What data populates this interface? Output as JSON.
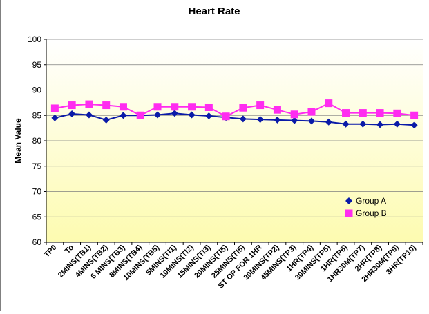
{
  "colors": {
    "plot_bg_top": "#ffffff",
    "plot_bg_bottom": "#fdfbb0",
    "series_a": "#0a1aa8",
    "series_b": "#ff2cf0",
    "axis": "#000000",
    "grid": "#7f7f7f"
  },
  "chart_data": {
    "type": "line",
    "title": "Heart Rate",
    "xlabel": "",
    "ylabel": "Mean Value",
    "ylim": [
      60,
      100
    ],
    "ytick_step": 5,
    "yticks": [
      "60",
      "65",
      "70",
      "75",
      "80",
      "85",
      "90",
      "95",
      "100"
    ],
    "grid": "horizontal",
    "legend_position": "bottom-right",
    "categories": [
      "TP0",
      "To",
      "2MINS(TB1)",
      "4MINS(TB2)",
      "6 MINS(TB3)",
      "8MINS(TB4)",
      "10MINS(TB5)",
      "5MINS(TI1)",
      "10MINS(TI2)",
      "15MINS(TI3)",
      "20MINS(TI5)",
      "25MINS(TI5)",
      "ST OP FOR 1HR",
      "30MINS(TP2)",
      "45MINS(TP3)",
      "1HR(TP4)",
      "30MINS(TP5)",
      "1HR(TP6)",
      "1HR30M(TP7)",
      "2HR(TP8)",
      "2HR30M(TP9)",
      "3HR(TP10)"
    ],
    "series": [
      {
        "name": "Group A",
        "marker": "diamond",
        "values": [
          84.5,
          85.3,
          85.1,
          84.1,
          85.0,
          85.0,
          85.1,
          85.4,
          85.1,
          84.9,
          84.6,
          84.3,
          84.2,
          84.1,
          84.0,
          83.9,
          83.7,
          83.3,
          83.3,
          83.2,
          83.3,
          83.1
        ]
      },
      {
        "name": "Group B",
        "marker": "square",
        "values": [
          86.4,
          87.0,
          87.2,
          87.0,
          86.7,
          85.0,
          86.7,
          86.7,
          86.7,
          86.6,
          84.8,
          86.5,
          87.0,
          86.1,
          85.2,
          85.7,
          87.4,
          85.5,
          85.5,
          85.5,
          85.4,
          85.0
        ]
      }
    ]
  }
}
